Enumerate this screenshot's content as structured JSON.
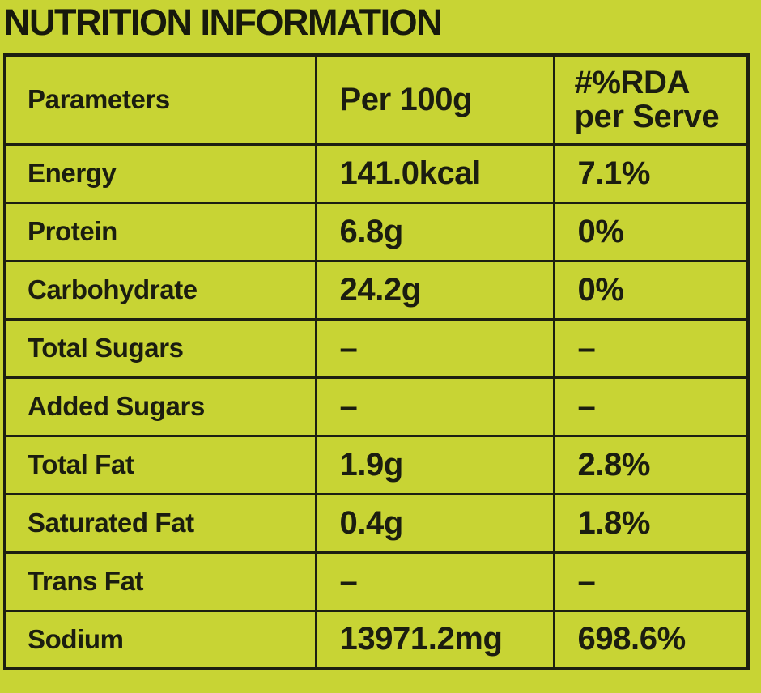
{
  "title": "NUTRITION INFORMATION",
  "colors": {
    "background": "#c8d434",
    "ink": "#1d1f11",
    "title_ink": "#17190c"
  },
  "table": {
    "headers": {
      "parameters": "Parameters",
      "per_100g": "Per 100g",
      "rda_line1": "#%RDA",
      "rda_line2": "per Serve"
    },
    "rows": [
      {
        "parameter": "Energy",
        "per_100g": "141.0kcal",
        "rda_per_serve": "7.1%"
      },
      {
        "parameter": "Protein",
        "per_100g": "6.8g",
        "rda_per_serve": "0%"
      },
      {
        "parameter": "Carbohydrate",
        "per_100g": "24.2g",
        "rda_per_serve": "0%"
      },
      {
        "parameter": "Total Sugars",
        "per_100g": "–",
        "rda_per_serve": "–"
      },
      {
        "parameter": "Added Sugars",
        "per_100g": "–",
        "rda_per_serve": "–"
      },
      {
        "parameter": "Total Fat",
        "per_100g": "1.9g",
        "rda_per_serve": "2.8%"
      },
      {
        "parameter": "Saturated Fat",
        "per_100g": "0.4g",
        "rda_per_serve": "1.8%"
      },
      {
        "parameter": "Trans Fat",
        "per_100g": "–",
        "rda_per_serve": "–"
      },
      {
        "parameter": "Sodium",
        "per_100g": "13971.2mg",
        "rda_per_serve": "698.6%"
      }
    ]
  }
}
